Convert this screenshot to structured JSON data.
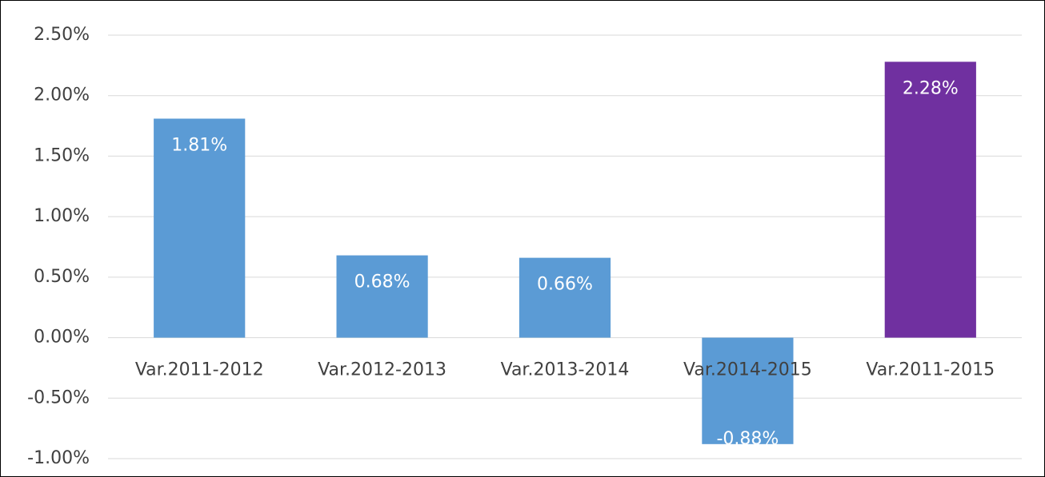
{
  "chart_data": {
    "type": "bar",
    "categories": [
      "Var.2011-2012",
      "Var.2012-2013",
      "Var.2013-2014",
      "Var.2014-2015",
      "Var.2011-2015"
    ],
    "values": [
      1.81,
      0.68,
      0.66,
      -0.88,
      2.28
    ],
    "value_labels": [
      "1.81%",
      "0.68%",
      "0.66%",
      "-0.88%",
      "2.28%"
    ],
    "colors": [
      "#5b9bd5",
      "#5b9bd5",
      "#5b9bd5",
      "#5b9bd5",
      "#7030a0"
    ],
    "ylim": [
      -1,
      2.5
    ],
    "yticks": [
      {
        "value": -1,
        "label": "-1.00%"
      },
      {
        "value": -0.5,
        "label": "-0.50%"
      },
      {
        "value": 0,
        "label": "0.00%"
      },
      {
        "value": 0.5,
        "label": "0.50%"
      },
      {
        "value": 1,
        "label": "1.00%"
      },
      {
        "value": 1.5,
        "label": "1.50%"
      },
      {
        "value": 2,
        "label": "2.00%"
      },
      {
        "value": 2.5,
        "label": "2.50%"
      }
    ],
    "grid": true
  }
}
